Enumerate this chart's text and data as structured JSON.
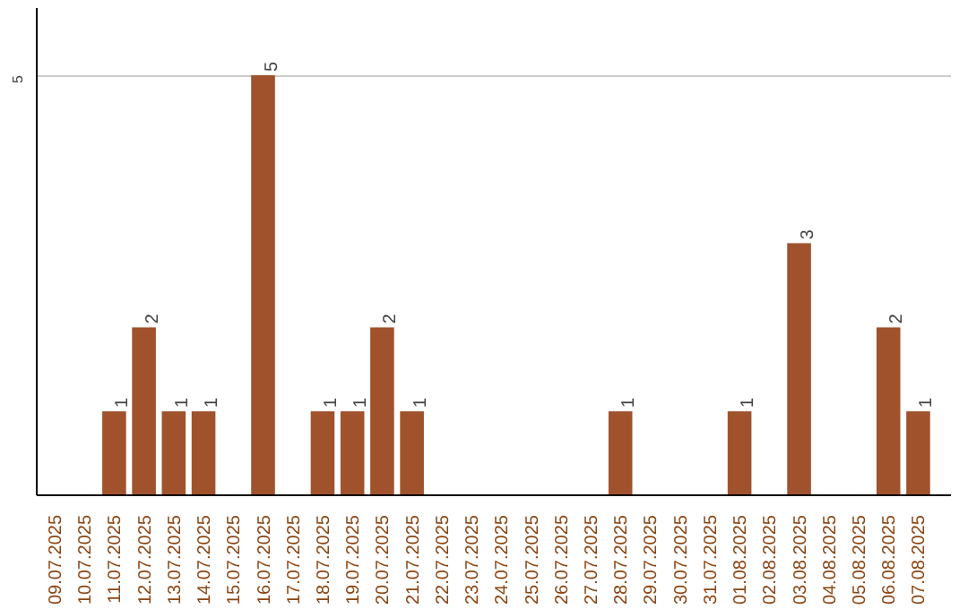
{
  "chart_data": {
    "type": "bar",
    "categories": [
      "09.07.2025",
      "10.07.2025",
      "11.07.2025",
      "12.07.2025",
      "13.07.2025",
      "14.07.2025",
      "15.07.2025",
      "16.07.2025",
      "17.07.2025",
      "18.07.2025",
      "19.07.2025",
      "20.07.2025",
      "21.07.2025",
      "22.07.2025",
      "23.07.2025",
      "24.07.2025",
      "25.07.2025",
      "26.07.2025",
      "27.07.2025",
      "28.07.2025",
      "29.07.2025",
      "30.07.2025",
      "31.07.2025",
      "01.08.2025",
      "02.08.2025",
      "03.08.2025",
      "04.08.2025",
      "05.08.2025",
      "06.08.2025",
      "07.08.2025"
    ],
    "values": [
      0,
      0,
      1,
      2,
      1,
      1,
      0,
      5,
      0,
      1,
      1,
      2,
      1,
      0,
      0,
      0,
      0,
      0,
      0,
      1,
      0,
      0,
      0,
      1,
      0,
      3,
      0,
      0,
      2,
      1
    ],
    "value_labels": [
      null,
      null,
      "1",
      "2",
      "1",
      "1",
      null,
      "5",
      null,
      "1",
      "1",
      "2",
      "1",
      null,
      null,
      null,
      null,
      null,
      null,
      "1",
      null,
      null,
      null,
      "1",
      null,
      "3",
      null,
      null,
      "2",
      "1"
    ],
    "color": "#a0522d",
    "ylim": [
      0,
      5.8
    ],
    "yticks": [
      5
    ],
    "grid": "y"
  }
}
